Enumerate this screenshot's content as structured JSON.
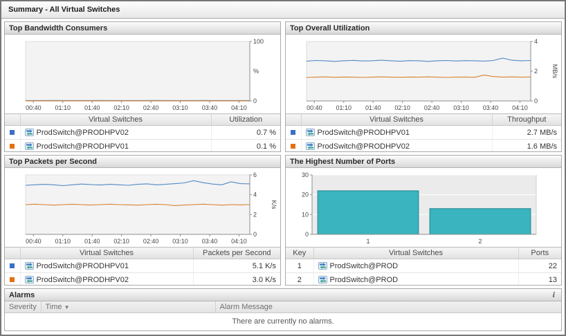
{
  "page_title": "Summary - All Virtual Switches",
  "colors": {
    "series_blue_swatch": "#3a6fc8",
    "series_orange_swatch": "#e2710e",
    "line_blue": "#5089c5",
    "line_orange": "#d9822f",
    "bar_teal": "#3ab4be"
  },
  "panels": {
    "bandwidth": {
      "title": "Top Bandwidth Consumers",
      "columns": {
        "name": "Virtual Switches",
        "value": "Utilization"
      },
      "rows": [
        {
          "color": "#3a6fc8",
          "name": "ProdSwitch@PRODHPV02",
          "value": "0.7 %"
        },
        {
          "color": "#e2710e",
          "name": "ProdSwitch@PRODHPV01",
          "value": "0.1 %"
        }
      ]
    },
    "utilization": {
      "title": "Top Overall Utilization",
      "columns": {
        "name": "Virtual Switches",
        "value": "Throughput"
      },
      "rows": [
        {
          "color": "#3a6fc8",
          "name": "ProdSwitch@PRODHPV01",
          "value": "2.7 MB/s"
        },
        {
          "color": "#e2710e",
          "name": "ProdSwitch@PRODHPV02",
          "value": "1.6 MB/s"
        }
      ]
    },
    "packets": {
      "title": "Top Packets per Second",
      "columns": {
        "name": "Virtual Switches",
        "value": "Packets per Second"
      },
      "rows": [
        {
          "color": "#3a6fc8",
          "name": "ProdSwitch@PRODHPV01",
          "value": "5.1 K/s"
        },
        {
          "color": "#e2710e",
          "name": "ProdSwitch@PRODHPV02",
          "value": "3.0 K/s"
        }
      ]
    },
    "ports": {
      "title": "The Highest Number of Ports",
      "columns": {
        "key": "Key",
        "name": "Virtual Switches",
        "value": "Ports"
      },
      "rows": [
        {
          "key": "1",
          "name": "ProdSwitch@PROD",
          "value": "22"
        },
        {
          "key": "2",
          "name": "ProdSwitch@PROD",
          "value": "13"
        }
      ]
    },
    "alarms": {
      "title": "Alarms",
      "info_icon": "i",
      "columns": {
        "severity": "Severity",
        "time": "Time",
        "message": "Alarm Message"
      },
      "sort_indicator": "▼",
      "empty_message": "There are currently no alarms."
    }
  },
  "chart_data": [
    {
      "type": "line",
      "title": "Top Bandwidth Consumers",
      "ylabel": "%",
      "ylim": [
        0,
        100
      ],
      "yticks": [
        0,
        100
      ],
      "grid": false,
      "x_labels": [
        "00:40",
        "01:10",
        "01:40",
        "02:10",
        "02:40",
        "03:10",
        "03:40",
        "04:10"
      ],
      "series": [
        {
          "name": "ProdSwitch@PRODHPV02",
          "color": "#5089c5",
          "values": [
            0.7,
            0.7,
            0.7,
            0.8,
            0.7,
            0.7,
            0.7,
            0.7,
            0.8,
            0.7,
            0.7,
            0.7,
            0.7,
            0.7,
            0.8,
            0.7,
            0.7,
            0.7,
            0.7,
            0.8,
            0.7,
            0.7,
            0.7,
            0.7,
            0.7
          ]
        },
        {
          "name": "ProdSwitch@PRODHPV01",
          "color": "#d9822f",
          "values": [
            0.1,
            0.1,
            0.1,
            0.1,
            0.1,
            0.1,
            0.1,
            0.1,
            0.1,
            0.1,
            0.1,
            0.1,
            0.1,
            0.1,
            0.1,
            0.1,
            0.1,
            0.1,
            0.1,
            0.1,
            0.1,
            0.1,
            0.1,
            0.1,
            0.1
          ]
        }
      ]
    },
    {
      "type": "line",
      "title": "Top Overall Utilization",
      "ylabel": "MB/s",
      "ylim": [
        0,
        4
      ],
      "yticks": [
        0,
        2,
        4
      ],
      "grid": false,
      "x_labels": [
        "00:40",
        "01:10",
        "01:40",
        "02:10",
        "02:40",
        "03:10",
        "03:40",
        "04:10"
      ],
      "series": [
        {
          "name": "ProdSwitch@PRODHPV01",
          "color": "#5089c5",
          "values": [
            2.68,
            2.72,
            2.7,
            2.66,
            2.7,
            2.73,
            2.69,
            2.7,
            2.74,
            2.7,
            2.67,
            2.71,
            2.7,
            2.66,
            2.7,
            2.72,
            2.69,
            2.71,
            2.7,
            2.68,
            2.72,
            2.88,
            2.74,
            2.7,
            2.72
          ]
        },
        {
          "name": "ProdSwitch@PRODHPV02",
          "color": "#d9822f",
          "values": [
            1.58,
            1.6,
            1.62,
            1.59,
            1.61,
            1.6,
            1.58,
            1.6,
            1.62,
            1.6,
            1.59,
            1.61,
            1.6,
            1.62,
            1.6,
            1.58,
            1.6,
            1.61,
            1.59,
            1.74,
            1.64,
            1.6,
            1.62,
            1.6,
            1.61
          ]
        }
      ]
    },
    {
      "type": "line",
      "title": "Top Packets per Second",
      "ylabel": "K/s",
      "ylim": [
        0,
        6
      ],
      "yticks": [
        0,
        2,
        4,
        6
      ],
      "grid": false,
      "x_labels": [
        "00:40",
        "01:10",
        "01:40",
        "02:10",
        "02:40",
        "03:10",
        "03:40",
        "04:10"
      ],
      "series": [
        {
          "name": "ProdSwitch@PRODHPV01",
          "color": "#5089c5",
          "values": [
            4.95,
            5.0,
            5.05,
            5.0,
            4.92,
            5.0,
            5.08,
            5.02,
            4.98,
            5.05,
            5.0,
            4.95,
            5.05,
            5.1,
            5.0,
            5.05,
            5.12,
            5.2,
            5.42,
            5.22,
            5.08,
            5.0,
            5.3,
            5.12,
            5.1
          ]
        },
        {
          "name": "ProdSwitch@PRODHPV02",
          "color": "#d9822f",
          "values": [
            3.0,
            3.05,
            3.0,
            2.95,
            3.0,
            3.04,
            3.0,
            2.96,
            3.0,
            3.05,
            3.0,
            2.98,
            2.95,
            3.0,
            3.04,
            3.0,
            2.9,
            2.96,
            3.0,
            3.05,
            3.0,
            2.95,
            3.0,
            2.98,
            3.0
          ]
        }
      ]
    },
    {
      "type": "bar",
      "title": "The Highest Number of Ports",
      "xlabel": "",
      "ylabel": "",
      "categories": [
        "1",
        "2"
      ],
      "values": [
        22,
        13
      ],
      "ylim": [
        0,
        30
      ],
      "yticks": [
        0,
        10,
        20,
        30
      ],
      "grid": true,
      "bar_color": "#3ab4be",
      "bar_border": "#25858d"
    }
  ]
}
